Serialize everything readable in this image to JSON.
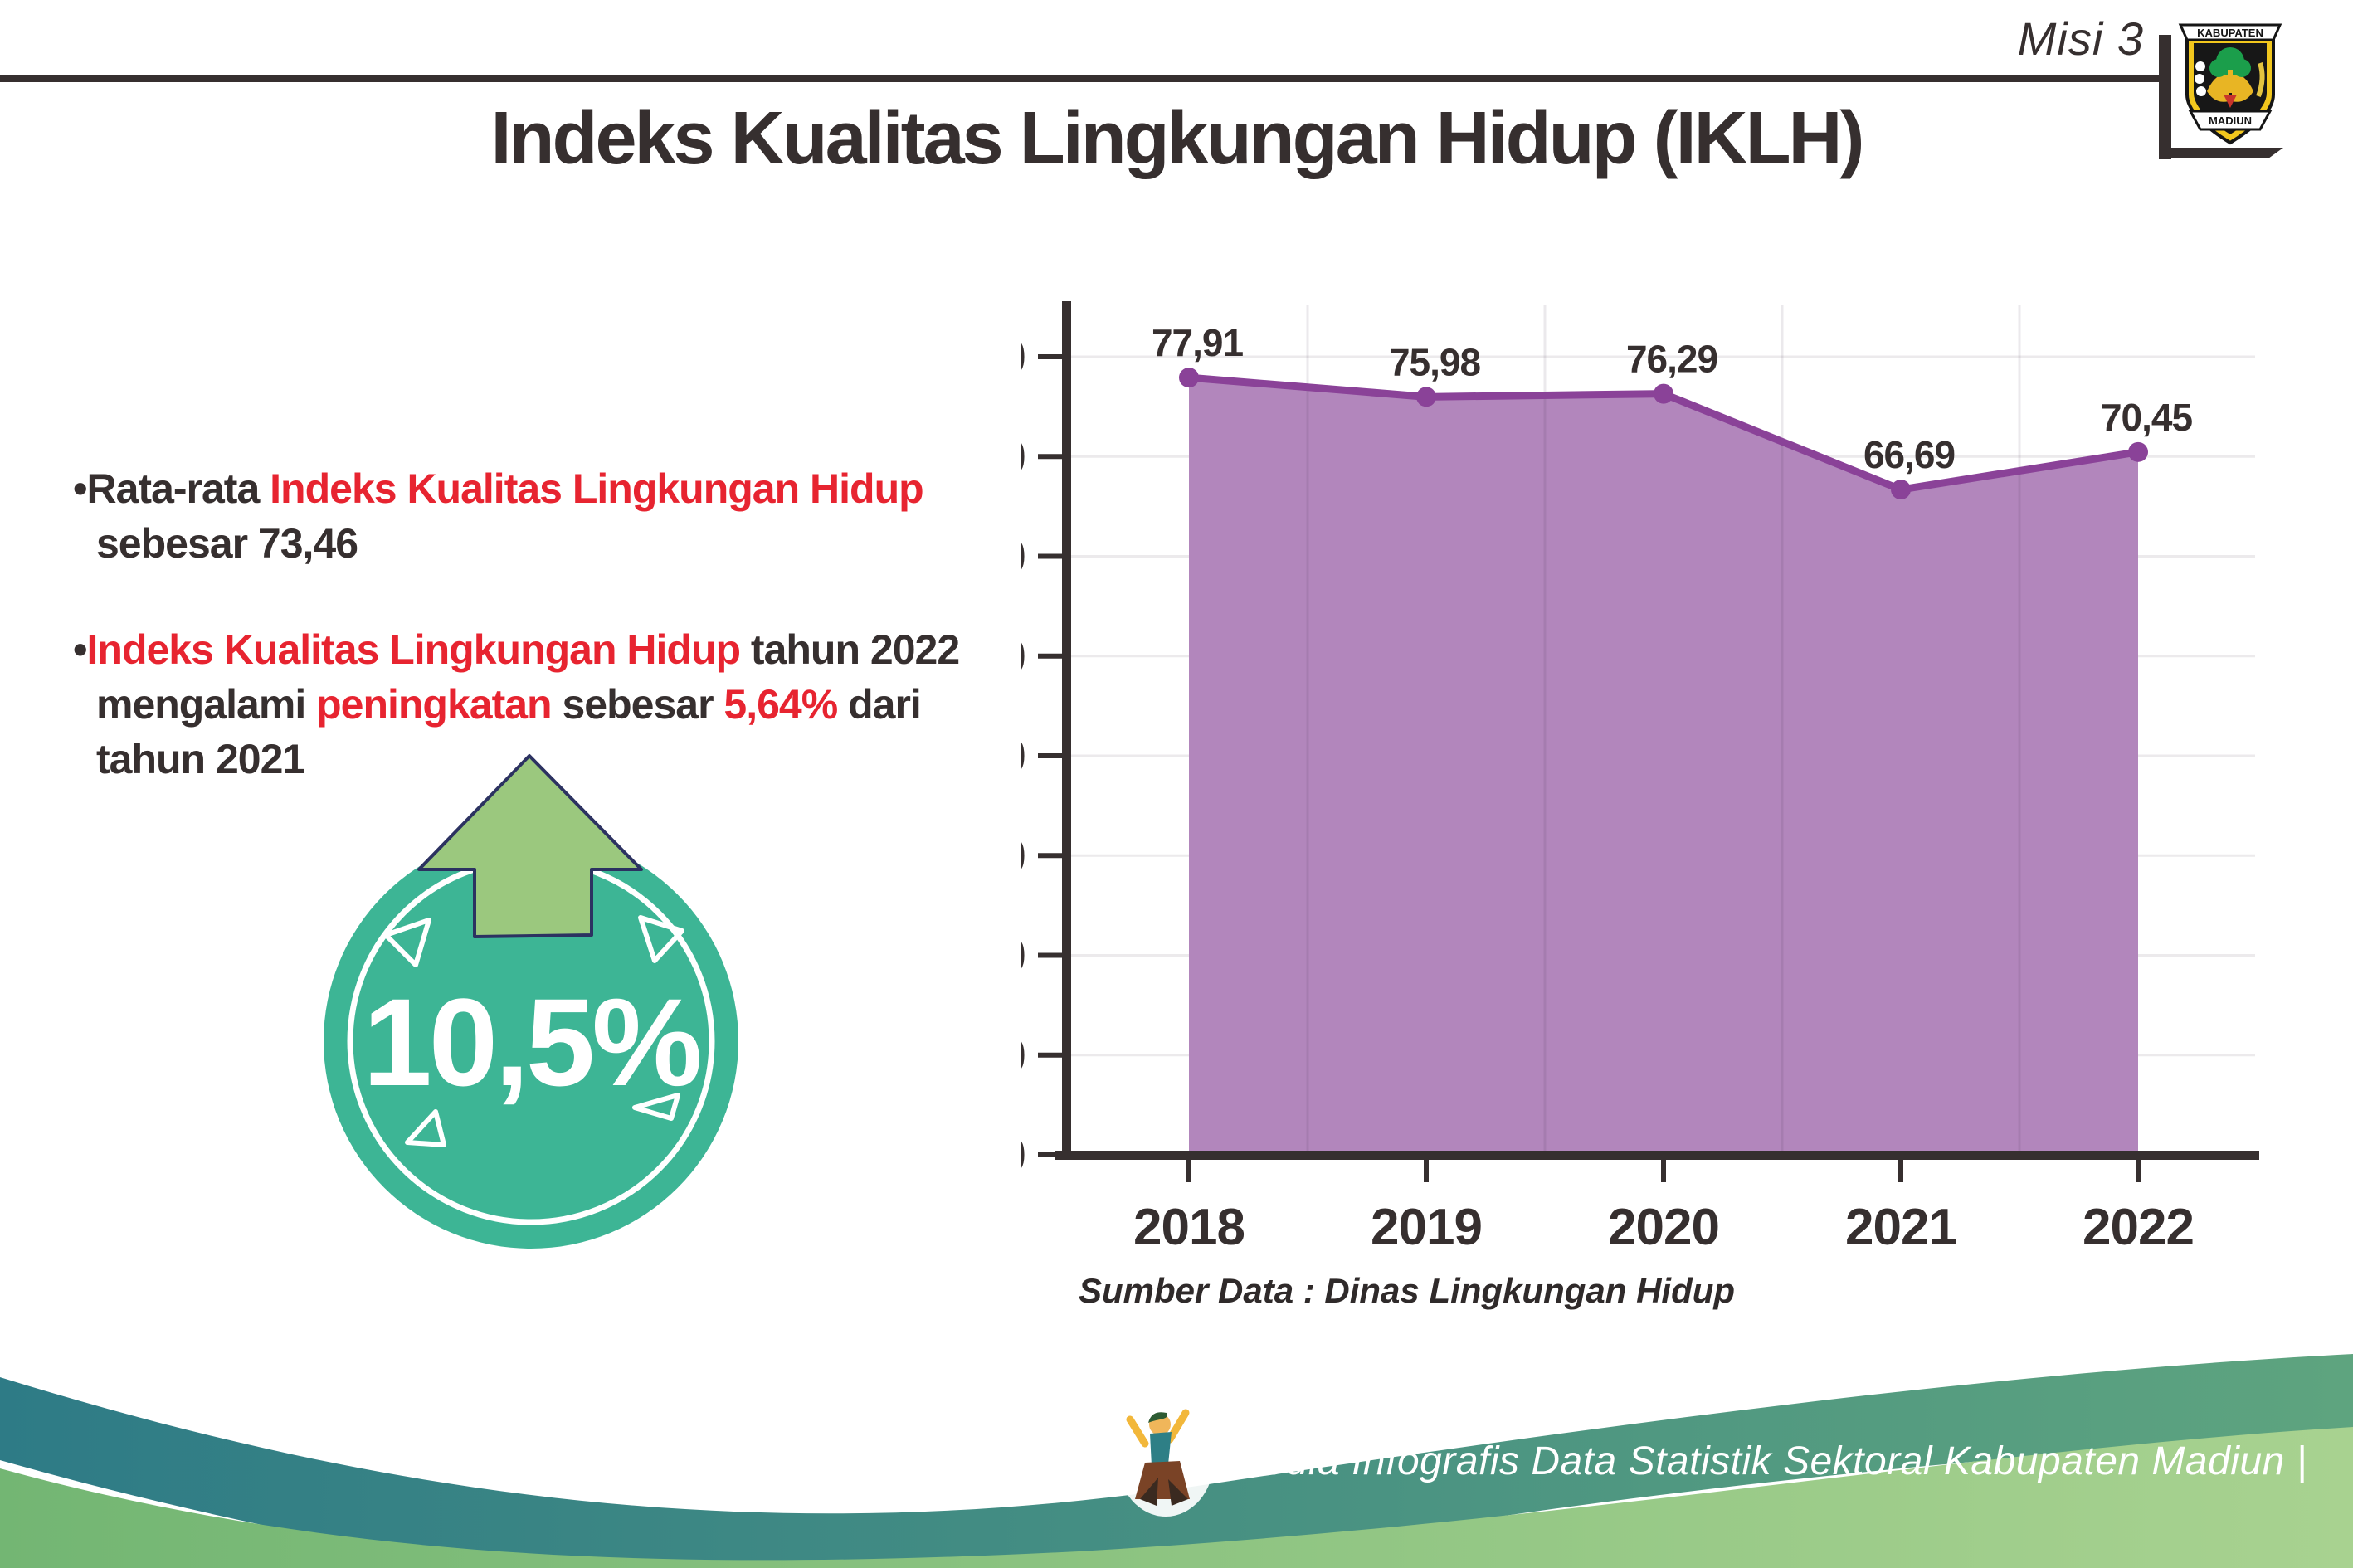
{
  "header": {
    "misi_label": "Misi 3",
    "logo": {
      "top": "KABUPATEN",
      "bottom": "MADIUN"
    }
  },
  "title": "Indeks Kualitas Lingkungan Hidup (IKLH)",
  "bullets": {
    "marker": "•",
    "bullet1": {
      "l1_dark": "Rata-rata ",
      "l1_red": "Indeks Kualitas Lingkungan Hidup",
      "l2_dark": "sebesar 73,46"
    },
    "bullet2": {
      "l1_red": "Indeks Kualitas Lingkungan Hidup",
      "l1_dark": " tahun 2022",
      "l2_dark1": "mengalami ",
      "l2_red1": "peningkatan",
      "l2_dark2": " sebesar ",
      "l2_red2": "5,64%",
      "l2_dark3": " dari",
      "l3_dark": "tahun 2021"
    }
  },
  "badge": {
    "value": "10,5%",
    "circle_color": "#3db595",
    "arrow_color": "#9bc87e"
  },
  "chart_data": {
    "type": "area",
    "title": "",
    "categories": [
      "2018",
      "2019",
      "2020",
      "2021",
      "2022"
    ],
    "values": [
      77.91,
      75.98,
      76.29,
      66.69,
      70.45
    ],
    "point_labels": [
      "77,91",
      "75,98",
      "76,29",
      "66,69",
      "70,45"
    ],
    "xlabel": "",
    "ylabel": "",
    "ylim": [
      0,
      80
    ],
    "ytick_step": 10,
    "grid": true,
    "legend": "none",
    "source": "Sumber Data : Dinas Lingkungan Hidup",
    "colors": {
      "area": "#b286bc",
      "line": "#8a4298",
      "marker": "#8a4298",
      "axis": "#362f2f",
      "gridline": "#eceaec",
      "label": "#362f2f"
    }
  },
  "footer": {
    "caption": "Media Infografis Data Statistik Sektoral Kabupaten Madiun |"
  },
  "colors": {
    "red": "#e72430",
    "dark": "#362f2f"
  }
}
